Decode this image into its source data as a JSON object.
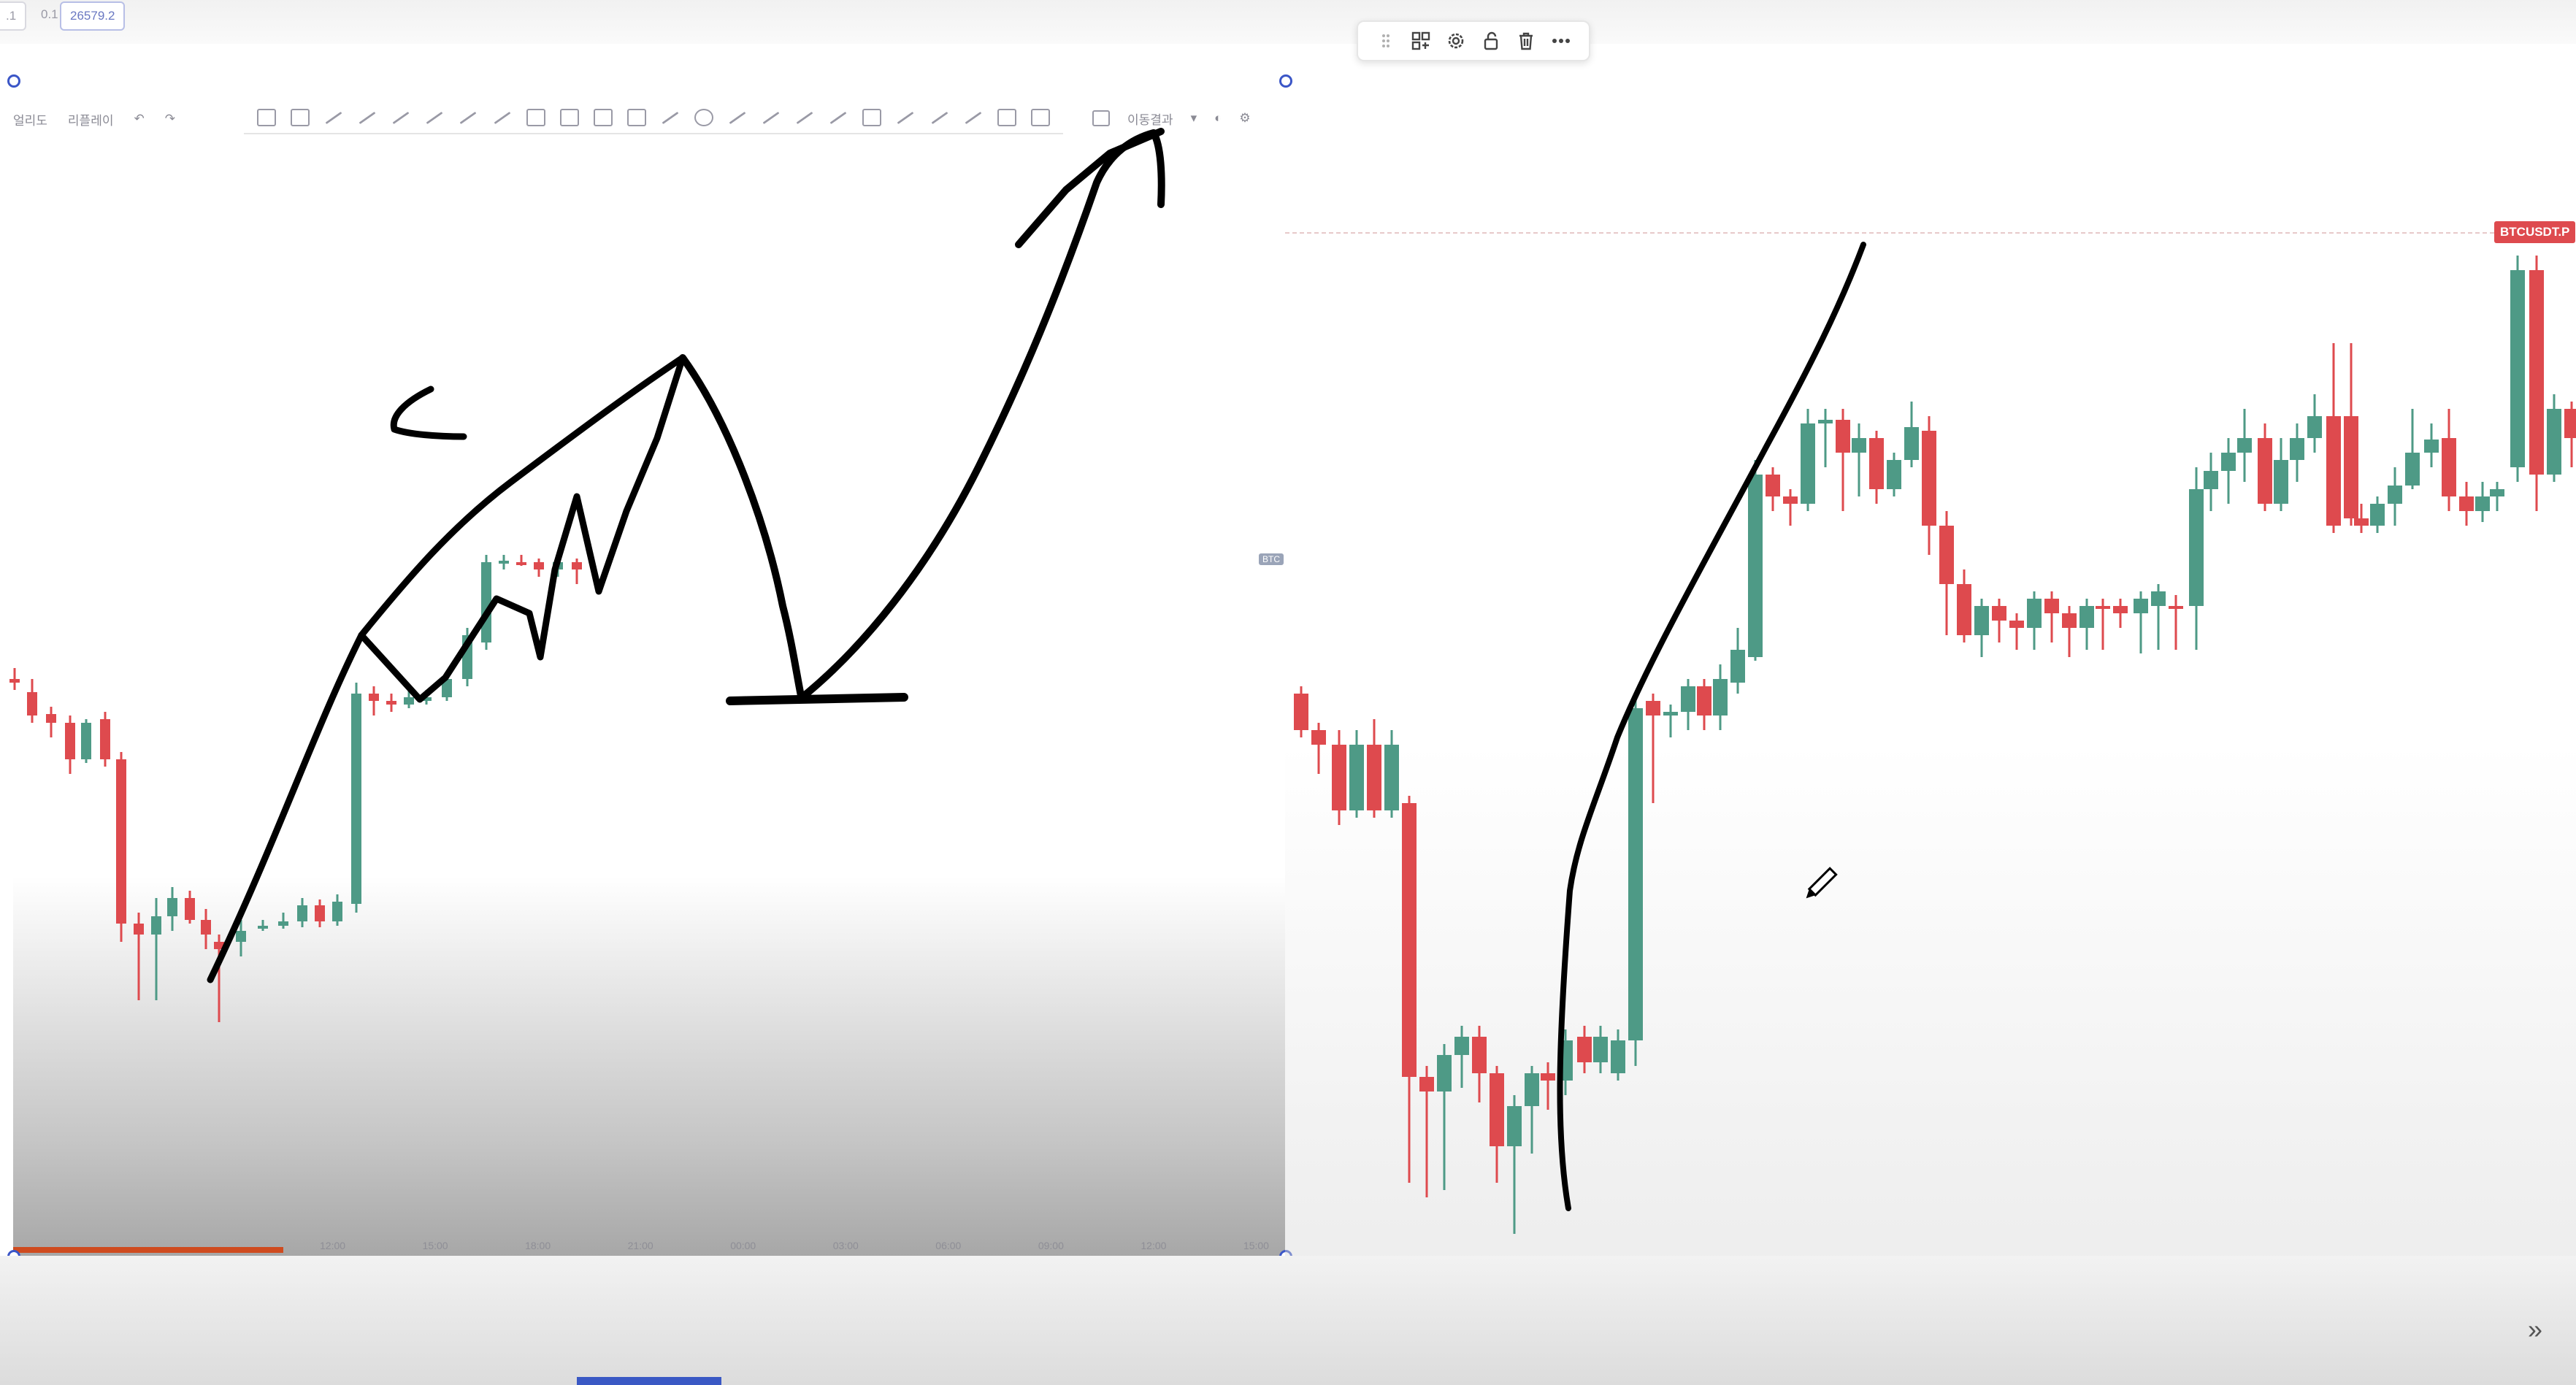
{
  "top_bar": {
    "chips": [
      ".1",
      "0.1",
      "26579.2"
    ]
  },
  "floating_toolbar": {
    "icons": [
      "drag-handle-icon",
      "template-icon",
      "gear-icon",
      "lock-icon",
      "trash-icon",
      "more-icon"
    ]
  },
  "left_chart": {
    "drawing_toolbar": {
      "left_items": [
        "얼리도",
        "리플레이"
      ],
      "right_label": "이동결과"
    },
    "symbol_tag": "BTC",
    "time_axis": [
      "12:00",
      "15:00",
      "18:00",
      "21:00",
      "00:00",
      "03:00",
      "06:00",
      "09:00",
      "12:00",
      "15:00"
    ]
  },
  "right_chart": {
    "symbol_tag": "BTCUSDT.P"
  },
  "colors": {
    "up": "#4e9a86",
    "down": "#de4a4e",
    "accent": "#3b56c7",
    "ink": "#000000"
  }
}
